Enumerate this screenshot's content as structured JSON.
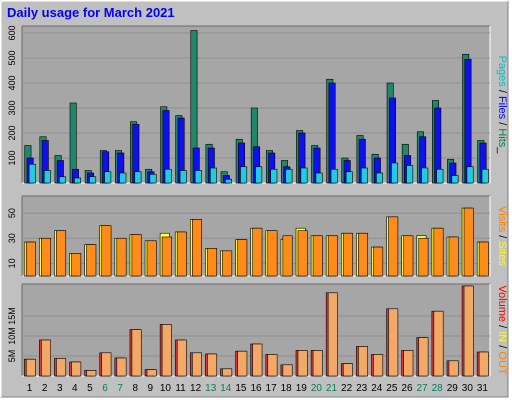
{
  "chart_data": {
    "type": "bar",
    "title": "Daily usage for March 2021",
    "categories": [
      "1",
      "2",
      "3",
      "4",
      "5",
      "6",
      "7",
      "8",
      "9",
      "10",
      "11",
      "12",
      "13",
      "14",
      "15",
      "16",
      "17",
      "18",
      "19",
      "20",
      "21",
      "22",
      "23",
      "24",
      "25",
      "26",
      "27",
      "28",
      "29",
      "30",
      "31"
    ],
    "weekend_days": [
      "6",
      "7",
      "13",
      "14",
      "20",
      "21",
      "27",
      "28"
    ],
    "panels": [
      {
        "id": "hits",
        "y_ticks": [
          "100",
          "200",
          "300",
          "400",
          "500",
          "600"
        ],
        "ylim": [
          0,
          620
        ],
        "label_parts": [
          {
            "text": "Pages",
            "color": "#00c0c0"
          },
          {
            "text": " / ",
            "color": "#000000"
          },
          {
            "text": "Files",
            "color": "#0000ff"
          },
          {
            "text": " / ",
            "color": "#000000"
          },
          {
            "text": "Hits",
            "color": "#008040"
          },
          {
            "text": "_",
            "color": "#000000"
          }
        ],
        "series": [
          {
            "key": "hits",
            "color": "#20876a",
            "values": [
              150,
              185,
              110,
              320,
              50,
              130,
              130,
              245,
              55,
              305,
              270,
              610,
              155,
              45,
              175,
              300,
              130,
              90,
              210,
              150,
              415,
              100,
              190,
              115,
              400,
              155,
              205,
              330,
              95,
              515,
              170
            ]
          },
          {
            "key": "files",
            "color": "#1010ee",
            "values": [
              100,
              170,
              90,
              55,
              40,
              125,
              120,
              235,
              45,
              290,
              260,
              140,
              140,
              30,
              160,
              145,
              120,
              65,
              200,
              140,
              400,
              90,
              175,
              100,
              340,
              110,
              185,
              300,
              80,
              495,
              160
            ]
          },
          {
            "key": "pages",
            "color": "#22ccdd",
            "values": [
              75,
              50,
              25,
              20,
              25,
              45,
              40,
              45,
              35,
              55,
              50,
              50,
              60,
              15,
              65,
              65,
              55,
              55,
              60,
              40,
              55,
              45,
              60,
              40,
              80,
              70,
              60,
              55,
              30,
              65,
              55
            ]
          }
        ]
      },
      {
        "id": "visits",
        "y_ticks": [
          "10",
          "30",
          "50"
        ],
        "ylim": [
          0,
          62
        ],
        "label_parts": [
          {
            "text": "Visits",
            "color": "#ff8000"
          },
          {
            "text": " / ",
            "color": "#000000"
          },
          {
            "text": "Sites",
            "color": "#ffff00"
          }
        ],
        "series": [
          {
            "key": "sites",
            "color": "#ffff33",
            "values": [
              27,
              30,
              36,
              18,
              25,
              40,
              30,
              33,
              28,
              34,
              35,
              45,
              22,
              20,
              29,
              38,
              36,
              29,
              38,
              32,
              32,
              34,
              34,
              23,
              47,
              32,
              32,
              38,
              31,
              54,
              27
            ]
          },
          {
            "key": "visits",
            "color": "#ff8c1a",
            "values": [
              27,
              30,
              36,
              18,
              25,
              40,
              30,
              33,
              28,
              31,
              35,
              45,
              22,
              20,
              29,
              38,
              36,
              32,
              36,
              32,
              32,
              34,
              34,
              23,
              47,
              32,
              30,
              38,
              31,
              54,
              27
            ]
          }
        ]
      },
      {
        "id": "volume",
        "y_ticks": [
          "5M",
          "10M",
          "15M"
        ],
        "ylim": [
          0,
          22.5
        ],
        "label_parts": [
          {
            "text": "Volume",
            "color": "#ff0000"
          },
          {
            "text": " / ",
            "color": "#000000"
          },
          {
            "text": "IN",
            "color": "#ffff00"
          },
          {
            "text": " / ",
            "color": "#000000"
          },
          {
            "text": "OUT",
            "color": "#ff8000"
          }
        ],
        "series": [
          {
            "key": "volume",
            "color": "#dd3b3b",
            "values": [
              4.2,
              9.0,
              4.4,
              3.5,
              1.4,
              5.8,
              4.5,
              11.6,
              1.6,
              12.9,
              9.0,
              5.8,
              5.5,
              1.8,
              6.2,
              8.0,
              5.4,
              2.8,
              6.4,
              6.4,
              20.8,
              3.1,
              7.4,
              5.4,
              16.8,
              6.4,
              9.6,
              16.2,
              3.8,
              22.5,
              6.0
            ]
          },
          {
            "key": "out",
            "color": "#f2a866",
            "values": [
              4.2,
              9.0,
              4.4,
              3.5,
              1.4,
              5.8,
              4.5,
              11.6,
              1.6,
              12.9,
              9.0,
              5.8,
              5.5,
              1.8,
              6.2,
              8.0,
              5.4,
              2.8,
              6.4,
              6.4,
              20.8,
              3.1,
              7.4,
              5.4,
              16.8,
              6.4,
              9.6,
              16.2,
              3.8,
              22.5,
              6.0
            ]
          }
        ]
      }
    ]
  },
  "colors": {
    "frame_bg": "#c0c0c0",
    "plot_bg": "#a6a6a6",
    "title": "#0000ff",
    "weekday_label": "#000000",
    "weekend_label": "#00805a"
  }
}
